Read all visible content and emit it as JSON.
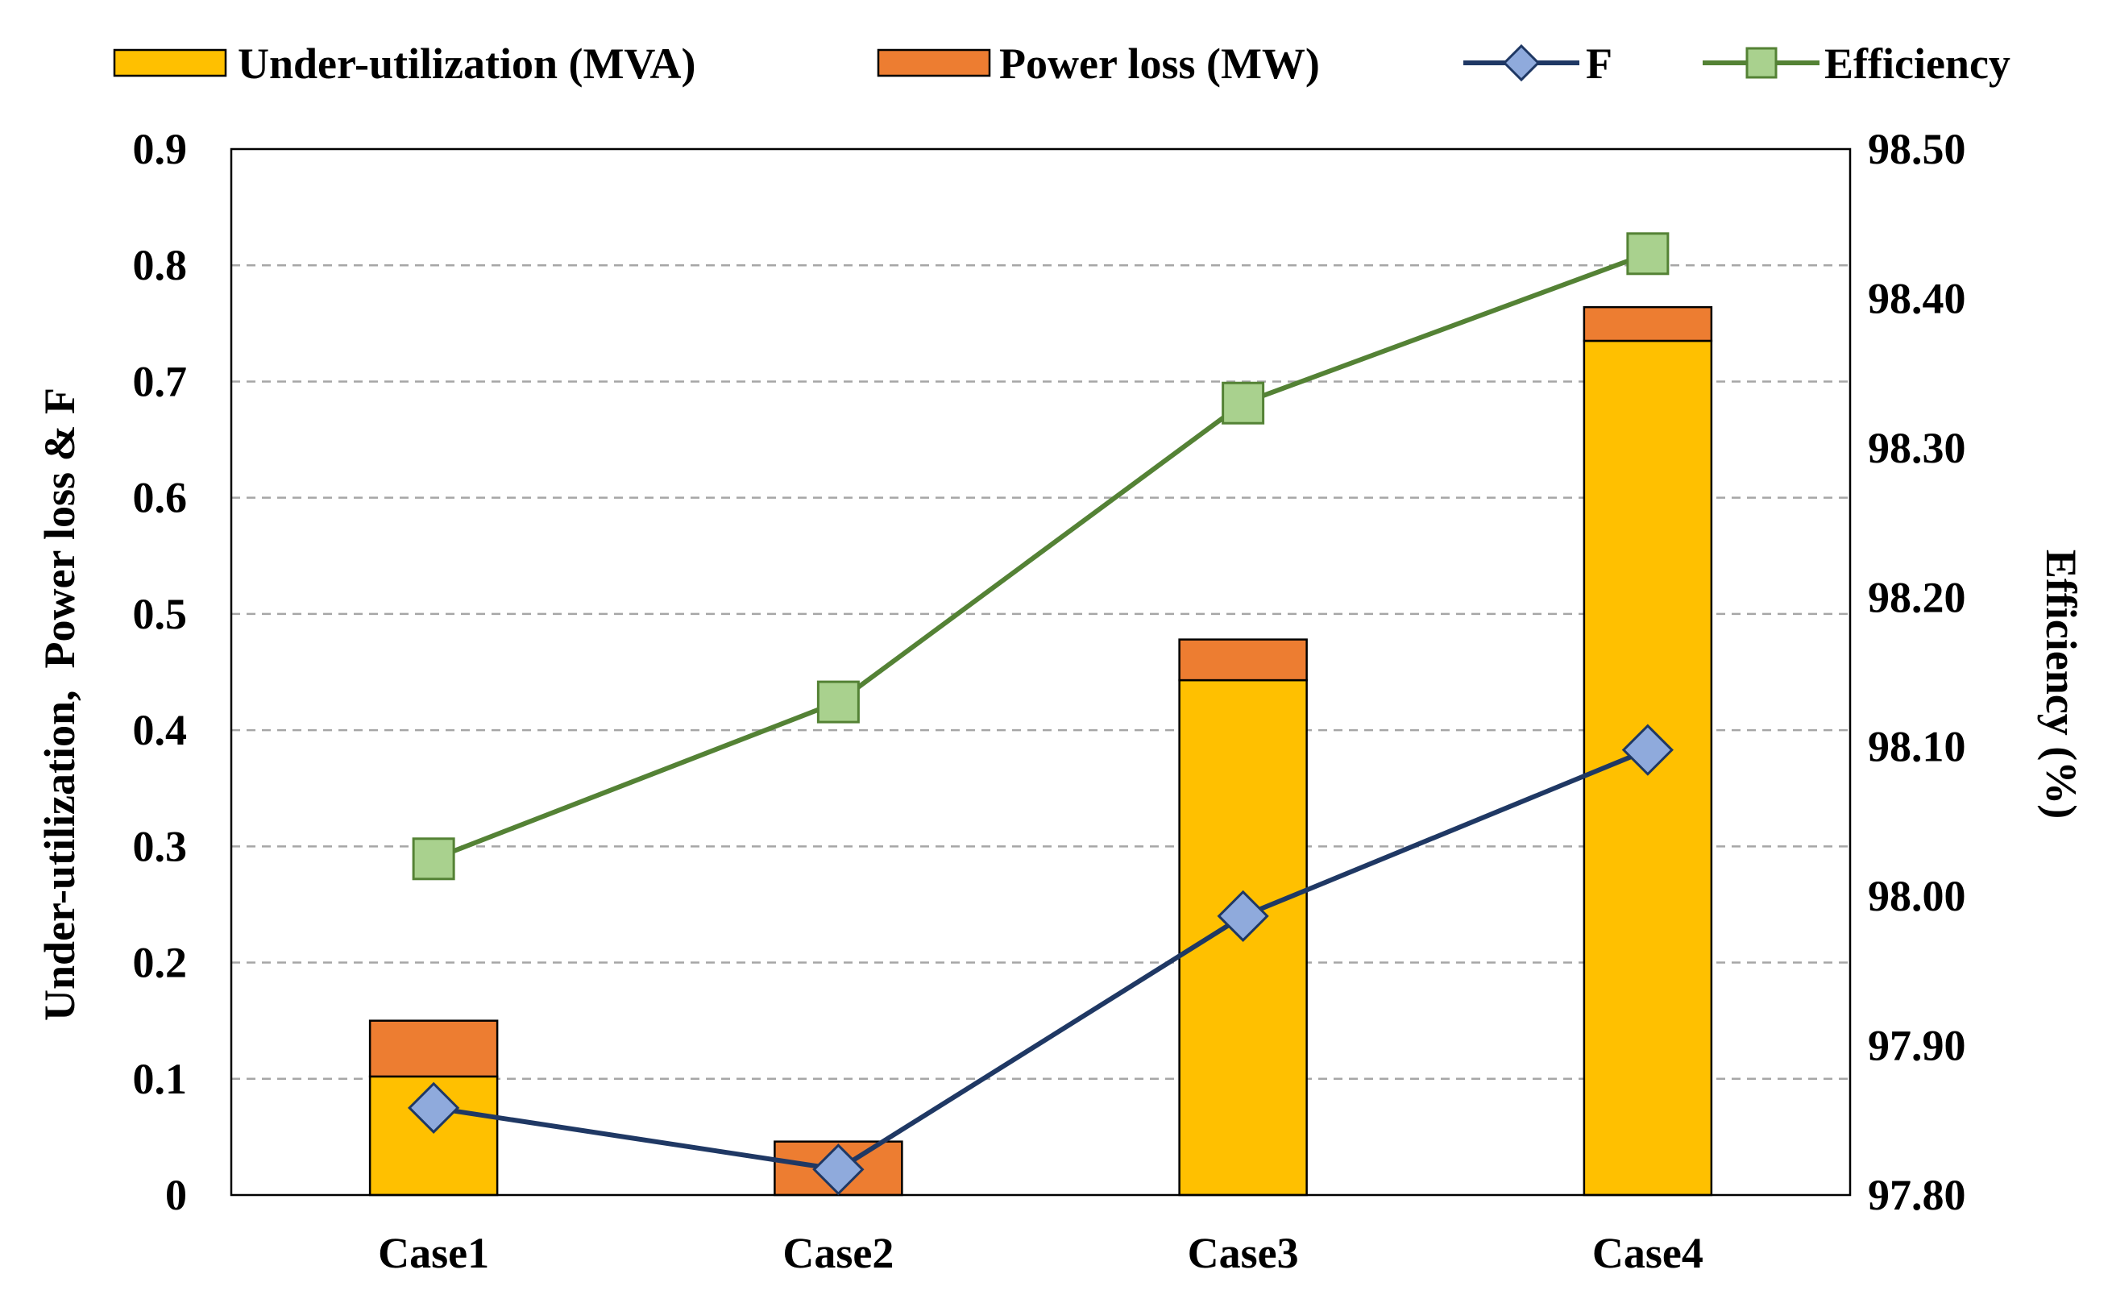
{
  "colors": {
    "under_utilization": "#FFC000",
    "power_loss": "#ED7D31",
    "f_line": "#1F3864",
    "f_marker": "#8FAADC",
    "efficiency_line": "#548235",
    "efficiency_marker": "#A9D18E",
    "grid": "#A6A6A6",
    "axis": "#000000"
  },
  "chart_data": {
    "type": "bar",
    "subtype": "stacked-bar-with-lines",
    "categories": [
      "Case1",
      "Case2",
      "Case3",
      "Case4"
    ],
    "series": [
      {
        "name": "Under-utilization (MVA)",
        "kind": "bar",
        "axis": "left",
        "stack": "s1",
        "values": [
          0.102,
          0.0,
          0.443,
          0.735
        ]
      },
      {
        "name": "Power loss (MW)",
        "kind": "bar",
        "axis": "left",
        "stack": "s1",
        "values": [
          0.048,
          0.046,
          0.035,
          0.029
        ]
      },
      {
        "name": "F",
        "kind": "line",
        "axis": "left",
        "marker": "diamond",
        "values": [
          0.075,
          0.022,
          0.24,
          0.383
        ]
      },
      {
        "name": "Efficiency",
        "kind": "line",
        "axis": "right",
        "marker": "square",
        "values": [
          98.025,
          98.13,
          98.33,
          98.43
        ]
      }
    ],
    "y_left": {
      "label": "Under-utilization,  Power loss & F",
      "range": [
        0,
        0.9
      ],
      "ticks": [
        0,
        0.1,
        0.2,
        0.3,
        0.4,
        0.5,
        0.6,
        0.7,
        0.8,
        0.9
      ],
      "tick_labels": [
        "0",
        "0.1",
        "0.2",
        "0.3",
        "0.4",
        "0.5",
        "0.6",
        "0.7",
        "0.8",
        "0.9"
      ]
    },
    "y_right": {
      "label": "Efficiency (%)",
      "range": [
        97.8,
        98.5
      ],
      "ticks": [
        97.8,
        97.9,
        98.0,
        98.1,
        98.2,
        98.3,
        98.4,
        98.5
      ],
      "tick_labels": [
        "97.80",
        "97.90",
        "98.00",
        "98.10",
        "98.20",
        "98.30",
        "98.40",
        "98.50"
      ]
    },
    "grid": "horizontal-dashed",
    "legend": {
      "position": "top",
      "items": [
        "Under-utilization (MVA)",
        "Power loss (MW)",
        "F",
        "Efficiency"
      ]
    }
  }
}
